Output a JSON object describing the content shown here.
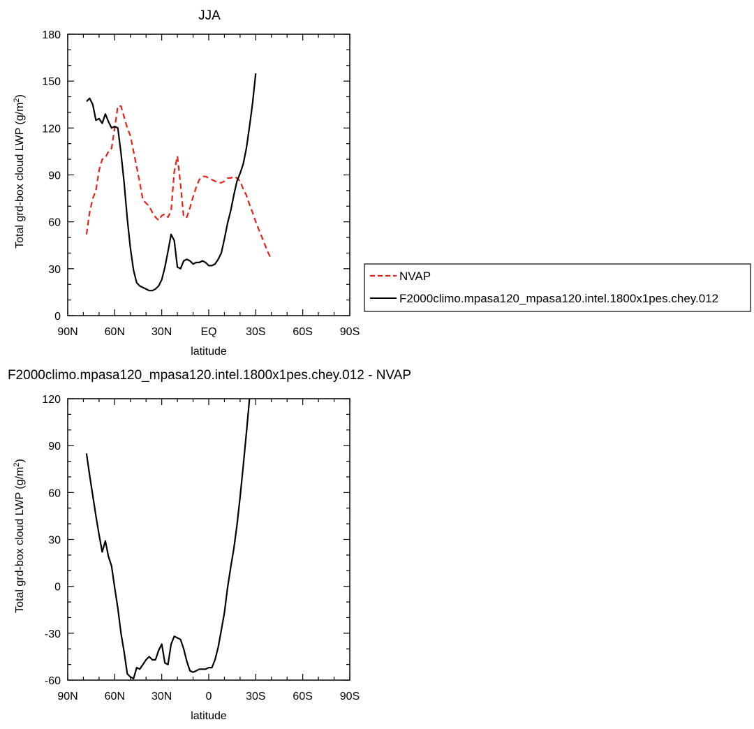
{
  "chart_data": [
    {
      "type": "line",
      "title": "JJA",
      "xlabel": "latitude",
      "ylabel": "Total grd-box cloud LWP (g/m",
      "ylabel_sup": "2",
      "ylabel_end": ")",
      "xlim": [
        90,
        -90
      ],
      "ylim": [
        0,
        180
      ],
      "x_ticks": [
        90,
        60,
        30,
        0,
        -30,
        -60,
        -90
      ],
      "x_tick_labels": [
        "90N",
        "60N",
        "30N",
        "EQ",
        "30S",
        "60S",
        "90S"
      ],
      "y_ticks": [
        0,
        30,
        60,
        90,
        120,
        150,
        180
      ],
      "y_tick_labels": [
        "0",
        "30",
        "60",
        "90",
        "120",
        "150",
        "180"
      ],
      "legend_position": "right",
      "series": [
        {
          "name": "NVAP",
          "color": "#e8201c",
          "dash": "dashed",
          "points": [
            [
              78,
              52
            ],
            [
              76,
              66
            ],
            [
              74,
              75
            ],
            [
              72,
              80
            ],
            [
              70,
              93
            ],
            [
              68,
              100
            ],
            [
              66,
              101
            ],
            [
              64,
              105
            ],
            [
              62,
              107
            ],
            [
              60,
              120
            ],
            [
              58,
              134
            ],
            [
              56,
              134
            ],
            [
              54,
              127
            ],
            [
              52,
              120
            ],
            [
              50,
              115
            ],
            [
              48,
              105
            ],
            [
              46,
              95
            ],
            [
              44,
              85
            ],
            [
              42,
              74
            ],
            [
              40,
              72
            ],
            [
              38,
              70
            ],
            [
              36,
              66
            ],
            [
              34,
              63
            ],
            [
              32,
              61
            ],
            [
              30,
              64
            ],
            [
              28,
              65
            ],
            [
              26,
              63
            ],
            [
              24,
              67
            ],
            [
              22,
              92
            ],
            [
              20,
              102
            ],
            [
              18,
              84
            ],
            [
              16,
              63
            ],
            [
              14,
              63
            ],
            [
              12,
              69
            ],
            [
              10,
              76
            ],
            [
              8,
              82
            ],
            [
              6,
              87
            ],
            [
              4,
              89
            ],
            [
              2,
              89
            ],
            [
              0,
              88
            ],
            [
              -2,
              87
            ],
            [
              -4,
              86
            ],
            [
              -6,
              85
            ],
            [
              -8,
              85
            ],
            [
              -10,
              86
            ],
            [
              -12,
              88
            ],
            [
              -14,
              88
            ],
            [
              -16,
              89
            ],
            [
              -18,
              88
            ],
            [
              -20,
              86
            ],
            [
              -22,
              81
            ],
            [
              -24,
              77
            ],
            [
              -26,
              71
            ],
            [
              -28,
              66
            ],
            [
              -30,
              60
            ],
            [
              -32,
              55
            ],
            [
              -34,
              50
            ],
            [
              -36,
              45
            ],
            [
              -38,
              40
            ],
            [
              -40,
              36
            ]
          ]
        },
        {
          "name": "F2000climo.mpasa120_mpasa120.intel.1800x1pes.chey.012",
          "color": "#000000",
          "dash": "solid",
          "points": [
            [
              78,
              137
            ],
            [
              76,
              139
            ],
            [
              74,
              135
            ],
            [
              72,
              125
            ],
            [
              70,
              126
            ],
            [
              68,
              123
            ],
            [
              66,
              129
            ],
            [
              64,
              124
            ],
            [
              62,
              120
            ],
            [
              60,
              121
            ],
            [
              58,
              120
            ],
            [
              56,
              104
            ],
            [
              54,
              85
            ],
            [
              52,
              62
            ],
            [
              50,
              43
            ],
            [
              48,
              29
            ],
            [
              46,
              21
            ],
            [
              44,
              19
            ],
            [
              42,
              18
            ],
            [
              40,
              17
            ],
            [
              38,
              16
            ],
            [
              36,
              16
            ],
            [
              34,
              17
            ],
            [
              32,
              19
            ],
            [
              30,
              23
            ],
            [
              28,
              31
            ],
            [
              26,
              41
            ],
            [
              24,
              52
            ],
            [
              22,
              48
            ],
            [
              20,
              31
            ],
            [
              18,
              30
            ],
            [
              16,
              35
            ],
            [
              14,
              36
            ],
            [
              12,
              35
            ],
            [
              10,
              33
            ],
            [
              8,
              34
            ],
            [
              6,
              34
            ],
            [
              4,
              35
            ],
            [
              2,
              34
            ],
            [
              0,
              32
            ],
            [
              -2,
              32
            ],
            [
              -4,
              33
            ],
            [
              -6,
              36
            ],
            [
              -8,
              40
            ],
            [
              -10,
              49
            ],
            [
              -12,
              59
            ],
            [
              -14,
              67
            ],
            [
              -16,
              77
            ],
            [
              -18,
              86
            ],
            [
              -20,
              91
            ],
            [
              -22,
              97
            ],
            [
              -24,
              107
            ],
            [
              -26,
              121
            ],
            [
              -28,
              136
            ],
            [
              -30,
              155
            ]
          ]
        }
      ]
    },
    {
      "type": "line",
      "title": "F2000climo.mpasa120_mpasa120.intel.1800x1pes.chey.012 - NVAP",
      "xlabel": "latitude",
      "ylabel": "Total grd-box cloud LWP (g/m",
      "ylabel_sup": "2",
      "ylabel_end": ")",
      "xlim": [
        90,
        -90
      ],
      "ylim": [
        -60,
        120
      ],
      "x_ticks": [
        90,
        60,
        30,
        0,
        -30,
        -60,
        -90
      ],
      "x_tick_labels": [
        "90N",
        "60N",
        "30N",
        "0",
        "30S",
        "60S",
        "90S"
      ],
      "y_ticks": [
        -60,
        -30,
        0,
        30,
        60,
        90,
        120
      ],
      "y_tick_labels": [
        "-60",
        "-30",
        "0",
        "30",
        "60",
        "90",
        "120"
      ],
      "series": [
        {
          "color": "#000000",
          "dash": "solid",
          "points": [
            [
              78,
              85
            ],
            [
              76,
              71
            ],
            [
              74,
              58
            ],
            [
              72,
              45
            ],
            [
              70,
              33
            ],
            [
              68,
              22
            ],
            [
              66,
              29
            ],
            [
              64,
              19
            ],
            [
              62,
              13
            ],
            [
              60,
              -1
            ],
            [
              58,
              -14
            ],
            [
              56,
              -30
            ],
            [
              54,
              -42
            ],
            [
              52,
              -56
            ],
            [
              50,
              -58
            ],
            [
              48,
              -59
            ],
            [
              46,
              -52
            ],
            [
              44,
              -53
            ],
            [
              42,
              -50
            ],
            [
              40,
              -47
            ],
            [
              38,
              -45
            ],
            [
              36,
              -47
            ],
            [
              34,
              -47
            ],
            [
              32,
              -41
            ],
            [
              30,
              -37
            ],
            [
              28,
              -49
            ],
            [
              26,
              -50
            ],
            [
              24,
              -37
            ],
            [
              22,
              -32
            ],
            [
              20,
              -33
            ],
            [
              18,
              -34
            ],
            [
              16,
              -40
            ],
            [
              14,
              -48
            ],
            [
              12,
              -54
            ],
            [
              10,
              -55
            ],
            [
              8,
              -54
            ],
            [
              6,
              -53
            ],
            [
              4,
              -53
            ],
            [
              2,
              -53
            ],
            [
              0,
              -52
            ],
            [
              -2,
              -52
            ],
            [
              -4,
              -47
            ],
            [
              -6,
              -39
            ],
            [
              -8,
              -28
            ],
            [
              -10,
              -17
            ],
            [
              -12,
              -1
            ],
            [
              -14,
              12
            ],
            [
              -16,
              24
            ],
            [
              -18,
              39
            ],
            [
              -20,
              57
            ],
            [
              -22,
              77
            ],
            [
              -24,
              98
            ],
            [
              -26,
              120
            ]
          ]
        }
      ]
    }
  ]
}
